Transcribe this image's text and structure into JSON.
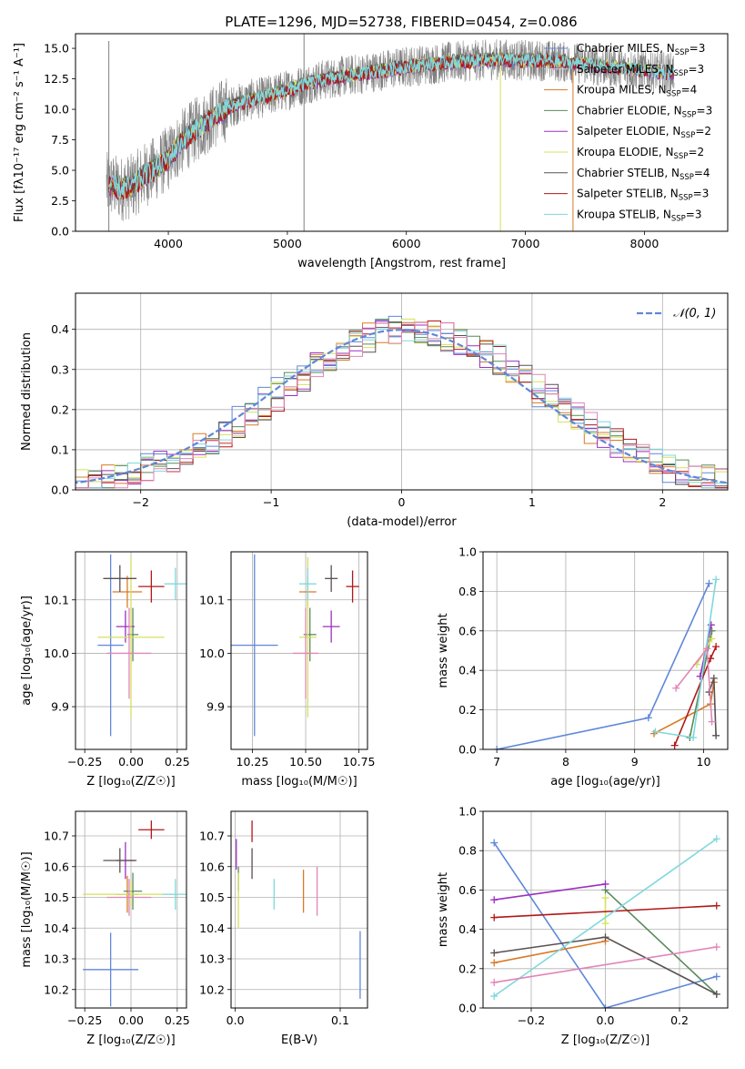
{
  "figure": {
    "title": "PLATE=1296, MJD=52738, FIBERID=0454, z=0.086"
  },
  "colors": {
    "Chabrier MILES": "#5f87d9",
    "Salpeter MILES": "#d0d0d0",
    "Kroupa MILES": "#d97a28",
    "Chabrier ELODIE": "#5a8a5a",
    "Salpeter ELODIE": "#9b30c0",
    "Kroupa ELODIE": "#d6e05a",
    "Chabrier STELIB": "#5a5050",
    "Salpeter STELIB": "#b01818",
    "Kroupa STELIB": "#7fd8dc",
    "pink": "#e085b8",
    "spectrum_gray": "#7f7f7f",
    "gauss": "#5f87d9"
  },
  "chart_data": [
    {
      "id": "spectrum",
      "type": "line",
      "title": "PLATE=1296, MJD=52738, FIBERID=0454, z=0.086",
      "xlabel": "wavelength [Angstrom, rest frame]",
      "ylabel": "Flux [fλ10⁻¹⁷ erg cm⁻² s⁻¹ A⁻¹]",
      "xlim": [
        3220,
        8700
      ],
      "ylim": [
        0,
        16.2
      ],
      "xticks": [
        4000,
        5000,
        6000,
        7000,
        8000
      ],
      "yticks": [
        0.0,
        2.5,
        5.0,
        7.5,
        10.0,
        12.5,
        15.0
      ],
      "grid": false,
      "legend_position": "top-right",
      "legend": [
        {
          "label": "Chabrier MILES, N",
          "sub": "SSP",
          "tail": "=3",
          "key": "Chabrier MILES"
        },
        {
          "label": "Salpeter MILES, N",
          "sub": "SSP",
          "tail": "=3",
          "key": "Salpeter MILES"
        },
        {
          "label": "Kroupa MILES, N",
          "sub": "SSP",
          "tail": "=4",
          "key": "Kroupa MILES"
        },
        {
          "label": "Chabrier ELODIE, N",
          "sub": "SSP",
          "tail": "=3",
          "key": "Chabrier ELODIE"
        },
        {
          "label": "Salpeter ELODIE, N",
          "sub": "SSP",
          "tail": "=2",
          "key": "Salpeter ELODIE"
        },
        {
          "label": "Kroupa ELODIE, N",
          "sub": "SSP",
          "tail": "=2",
          "key": "Kroupa ELODIE"
        },
        {
          "label": "Chabrier STELIB, N",
          "sub": "SSP",
          "tail": "=4",
          "key": "Chabrier STELIB"
        },
        {
          "label": "Salpeter STELIB, N",
          "sub": "SSP",
          "tail": "=3",
          "key": "Salpeter STELIB"
        },
        {
          "label": "Kroupa STELIB, N",
          "sub": "SSP",
          "tail": "=3",
          "key": "Kroupa STELIB"
        }
      ],
      "continuum": {
        "x": [
          3500,
          3600,
          3700,
          3800,
          3900,
          4000,
          4100,
          4200,
          4300,
          4400,
          4500,
          4600,
          4700,
          4800,
          4900,
          5000,
          5200,
          5400,
          5600,
          5800,
          6000,
          6200,
          6400,
          6600,
          6800,
          7000,
          7200,
          7400,
          7600,
          7800,
          8000,
          8200
        ],
        "y": [
          3.8,
          3.5,
          3.7,
          4.6,
          5.2,
          6.0,
          7.2,
          8.1,
          8.8,
          9.5,
          10.1,
          10.5,
          10.8,
          11.0,
          11.3,
          11.6,
          12.2,
          12.6,
          12.9,
          13.2,
          13.5,
          13.7,
          13.9,
          14.0,
          14.1,
          14.0,
          14.0,
          13.8,
          13.6,
          13.4,
          13.2,
          13.0
        ]
      },
      "spikes": [
        {
          "x": 3500,
          "ymin": 0,
          "ymax": 15.6
        },
        {
          "x": 5140,
          "ymin": 0,
          "ymax": 16.2
        },
        {
          "x": 6790,
          "ymin": 0,
          "ymax": 14.0
        },
        {
          "x": 7400,
          "ymin": 0,
          "ymax": 14.2
        }
      ]
    },
    {
      "id": "residuals",
      "type": "histogram",
      "xlabel": "(data-model)/error",
      "ylabel": "Normed distribution",
      "xlim": [
        -2.5,
        2.5
      ],
      "ylim": [
        0,
        0.49
      ],
      "xticks": [
        -2,
        -1,
        0,
        1,
        2
      ],
      "yticks": [
        0.0,
        0.1,
        0.2,
        0.3,
        0.4
      ],
      "grid": true,
      "legend": [
        {
          "label": "𝒩(0, 1)",
          "key": "gauss"
        }
      ],
      "legend_position": "top-right"
    },
    {
      "id": "age_vs_Z",
      "type": "errorbar",
      "xlabel": "Z [log₁₀(Z/Z☉)]",
      "ylabel": "age  [log₁₀(age/yr)]",
      "xlim": [
        -0.3,
        0.3
      ],
      "ylim": [
        9.82,
        10.19
      ],
      "xticks": [
        -0.25,
        0.0,
        0.25
      ],
      "xticklabels": [
        "−0.25",
        "0.00",
        "0.25"
      ],
      "yticks": [
        9.9,
        10.0,
        10.1
      ],
      "grid": true,
      "points": [
        {
          "key": "Chabrier MILES",
          "x": -0.11,
          "xerr": 0.07,
          "y": 10.015,
          "yerr": 0.17
        },
        {
          "key": "Kroupa MILES",
          "x": -0.02,
          "xerr": 0.08,
          "y": 10.115,
          "yerr": 0.03
        },
        {
          "key": "Chabrier ELODIE",
          "x": 0.01,
          "xerr": 0.03,
          "y": 10.035,
          "yerr": 0.05
        },
        {
          "key": "Salpeter ELODIE",
          "x": -0.03,
          "xerr": 0.05,
          "y": 10.05,
          "yerr": 0.03
        },
        {
          "key": "Kroupa ELODIE",
          "x": 0.0,
          "xerr": 0.18,
          "y": 10.03,
          "yerr": 0.15
        },
        {
          "key": "Chabrier STELIB",
          "x": -0.06,
          "xerr": 0.09,
          "y": 10.14,
          "yerr": 0.025
        },
        {
          "key": "Salpeter STELIB",
          "x": 0.11,
          "xerr": 0.07,
          "y": 10.125,
          "yerr": 0.03
        },
        {
          "key": "Kroupa STELIB",
          "x": 0.24,
          "xerr": 0.06,
          "y": 10.13,
          "yerr": 0.03
        },
        {
          "key": "pink",
          "x": -0.01,
          "xerr": 0.12,
          "y": 10.0,
          "yerr": 0.085
        }
      ]
    },
    {
      "id": "age_vs_mass",
      "type": "errorbar",
      "xlabel": "mass [log₁₀(M/M☉)]",
      "ylabel": "",
      "xlim": [
        10.15,
        10.79
      ],
      "ylim": [
        9.82,
        10.19
      ],
      "xticks": [
        10.25,
        10.5,
        10.75
      ],
      "xticklabels": [
        "10.25",
        "10.50",
        "10.75"
      ],
      "yticks": [
        9.9,
        10.0,
        10.1
      ],
      "grid": true,
      "points": [
        {
          "key": "Chabrier MILES",
          "x": 10.26,
          "xerr": 0.11,
          "y": 10.015,
          "yerr": 0.17
        },
        {
          "key": "Kroupa MILES",
          "x": 10.51,
          "xerr": 0.04,
          "y": 10.115,
          "yerr": 0.03
        },
        {
          "key": "Chabrier ELODIE",
          "x": 10.52,
          "xerr": 0.03,
          "y": 10.035,
          "yerr": 0.05
        },
        {
          "key": "Salpeter ELODIE",
          "x": 10.62,
          "xerr": 0.04,
          "y": 10.05,
          "yerr": 0.03
        },
        {
          "key": "Kroupa ELODIE",
          "x": 10.51,
          "xerr": 0.04,
          "y": 10.03,
          "yerr": 0.15
        },
        {
          "key": "Chabrier STELIB",
          "x": 10.62,
          "xerr": 0.03,
          "y": 10.14,
          "yerr": 0.025
        },
        {
          "key": "Salpeter STELIB",
          "x": 10.72,
          "xerr": 0.03,
          "y": 10.125,
          "yerr": 0.03
        },
        {
          "key": "Kroupa STELIB",
          "x": 10.51,
          "xerr": 0.04,
          "y": 10.13,
          "yerr": 0.03
        },
        {
          "key": "pink",
          "x": 10.5,
          "xerr": 0.06,
          "y": 10.0,
          "yerr": 0.085
        }
      ]
    },
    {
      "id": "mass_weight_vs_age",
      "type": "line",
      "xlabel": "age  [log₁₀(age/yr)]",
      "ylabel": "mass weight",
      "xlim": [
        6.8,
        10.35
      ],
      "ylim": [
        0,
        1.0
      ],
      "xticks": [
        7,
        8,
        9,
        10
      ],
      "yticks": [
        0.0,
        0.2,
        0.4,
        0.6,
        0.8,
        1.0
      ],
      "grid": true,
      "series": [
        {
          "key": "Chabrier MILES",
          "x": [
            7.0,
            9.2,
            10.08
          ],
          "y": [
            0.0,
            0.16,
            0.84
          ]
        },
        {
          "key": "Kroupa MILES",
          "x": [
            9.28,
            10.1,
            10.15
          ],
          "y": [
            0.08,
            0.23,
            0.34
          ]
        },
        {
          "key": "Chabrier ELODIE",
          "x": [
            9.8,
            10.12
          ],
          "y": [
            0.06,
            0.6
          ]
        },
        {
          "key": "Salpeter ELODIE",
          "x": [
            9.95,
            10.11
          ],
          "y": [
            0.37,
            0.63
          ]
        },
        {
          "key": "Kroupa ELODIE",
          "x": [
            9.9,
            10.12
          ],
          "y": [
            0.43,
            0.56
          ]
        },
        {
          "key": "Chabrier STELIB",
          "x": [
            10.08,
            10.15,
            10.18
          ],
          "y": [
            0.29,
            0.36,
            0.07
          ]
        },
        {
          "key": "Salpeter STELIB",
          "x": [
            9.58,
            10.1,
            10.18
          ],
          "y": [
            0.02,
            0.46,
            0.52
          ]
        },
        {
          "key": "Kroupa STELIB",
          "x": [
            9.3,
            9.85,
            10.18
          ],
          "y": [
            0.09,
            0.06,
            0.86
          ]
        },
        {
          "key": "pink",
          "x": [
            9.6,
            10.05,
            10.12
          ],
          "y": [
            0.31,
            0.51,
            0.14
          ]
        }
      ]
    },
    {
      "id": "mass_vs_Z",
      "type": "errorbar",
      "xlabel": "Z [log₁₀(Z/Z☉)]",
      "ylabel": "mass [log₁₀(M/M☉)]",
      "xlim": [
        -0.3,
        0.3
      ],
      "ylim": [
        10.14,
        10.78
      ],
      "xticks": [
        -0.25,
        0.0,
        0.25
      ],
      "xticklabels": [
        "−0.25",
        "0.00",
        "0.25"
      ],
      "yticks": [
        10.2,
        10.3,
        10.4,
        10.5,
        10.6,
        10.7
      ],
      "grid": true,
      "points": [
        {
          "key": "Chabrier MILES",
          "x": -0.11,
          "xerr": 0.15,
          "y": 10.265,
          "yerr": 0.12
        },
        {
          "key": "Kroupa MILES",
          "x": -0.02,
          "xerr": 0.06,
          "y": 10.51,
          "yerr": 0.06
        },
        {
          "key": "Chabrier ELODIE",
          "x": 0.01,
          "xerr": 0.05,
          "y": 10.52,
          "yerr": 0.06
        },
        {
          "key": "Salpeter ELODIE",
          "x": -0.03,
          "xerr": 0.05,
          "y": 10.62,
          "yerr": 0.06
        },
        {
          "key": "Kroupa ELODIE",
          "x": 0.0,
          "xerr": 0.26,
          "y": 10.51,
          "yerr": 0.04
        },
        {
          "key": "Chabrier STELIB",
          "x": -0.06,
          "xerr": 0.09,
          "y": 10.62,
          "yerr": 0.04
        },
        {
          "key": "Salpeter STELIB",
          "x": 0.11,
          "xerr": 0.07,
          "y": 10.72,
          "yerr": 0.03
        },
        {
          "key": "Kroupa STELIB",
          "x": 0.24,
          "xerr": 0.07,
          "y": 10.51,
          "yerr": 0.05
        },
        {
          "key": "pink",
          "x": -0.01,
          "xerr": 0.12,
          "y": 10.5,
          "yerr": 0.06
        }
      ]
    },
    {
      "id": "mass_vs_EBV",
      "type": "errorbar",
      "xlabel": "E(B-V)",
      "ylabel": "",
      "xlim": [
        -0.004,
        0.126
      ],
      "ylim": [
        10.14,
        10.78
      ],
      "xticks": [
        0.0,
        0.1
      ],
      "xticklabels": [
        "0.0",
        "0.1"
      ],
      "yticks": [
        10.2,
        10.3,
        10.4,
        10.5,
        10.6,
        10.7
      ],
      "grid": true,
      "points": [
        {
          "key": "Chabrier MILES",
          "x": 0.119,
          "xerr": 0,
          "y": 10.28,
          "yerr": 0.11
        },
        {
          "key": "Kroupa MILES",
          "x": 0.065,
          "xerr": 0,
          "y": 10.52,
          "yerr": 0.07
        },
        {
          "key": "Chabrier ELODIE",
          "x": 0.003,
          "xerr": 0,
          "y": 10.56,
          "yerr": 0.04
        },
        {
          "key": "Salpeter ELODIE",
          "x": 0.001,
          "xerr": 0,
          "y": 10.64,
          "yerr": 0.05
        },
        {
          "key": "Kroupa ELODIE",
          "x": 0.003,
          "xerr": 0,
          "y": 10.49,
          "yerr": 0.09
        },
        {
          "key": "Chabrier STELIB",
          "x": 0.016,
          "xerr": 0,
          "y": 10.61,
          "yerr": 0.05
        },
        {
          "key": "Salpeter STELIB",
          "x": 0.016,
          "xerr": 0,
          "y": 10.715,
          "yerr": 0.035
        },
        {
          "key": "Kroupa STELIB",
          "x": 0.037,
          "xerr": 0,
          "y": 10.51,
          "yerr": 0.05
        },
        {
          "key": "pink",
          "x": 0.078,
          "xerr": 0,
          "y": 10.52,
          "yerr": 0.08
        }
      ]
    },
    {
      "id": "mass_weight_vs_Z",
      "type": "line",
      "xlabel": "Z [log₁₀(Z/Z☉)]",
      "ylabel": "mass weight",
      "xlim": [
        -0.33,
        0.33
      ],
      "ylim": [
        0,
        1.0
      ],
      "xticks": [
        -0.2,
        0.0,
        0.2
      ],
      "xticklabels": [
        "−0.2",
        "0.0",
        "0.2"
      ],
      "yticks": [
        0.0,
        0.2,
        0.4,
        0.6,
        0.8,
        1.0
      ],
      "grid": true,
      "series": [
        {
          "key": "Chabrier MILES",
          "x": [
            -0.3,
            0.0,
            0.3
          ],
          "y": [
            0.84,
            0.0,
            0.16
          ]
        },
        {
          "key": "Kroupa MILES",
          "x": [
            -0.3,
            0.0
          ],
          "y": [
            0.23,
            0.34
          ]
        },
        {
          "key": "Chabrier ELODIE",
          "x": [
            0.0,
            0.3
          ],
          "y": [
            0.6,
            0.07
          ]
        },
        {
          "key": "Salpeter ELODIE",
          "x": [
            -0.3,
            0.0
          ],
          "y": [
            0.55,
            0.63
          ]
        },
        {
          "key": "Kroupa ELODIE",
          "x": [
            0.0,
            0.0
          ],
          "y": [
            0.43,
            0.56
          ]
        },
        {
          "key": "Chabrier STELIB",
          "x": [
            -0.3,
            0.0,
            0.3
          ],
          "y": [
            0.28,
            0.36,
            0.07
          ]
        },
        {
          "key": "Salpeter STELIB",
          "x": [
            -0.3,
            0.3
          ],
          "y": [
            0.46,
            0.52
          ]
        },
        {
          "key": "Kroupa STELIB",
          "x": [
            -0.3,
            0.3
          ],
          "y": [
            0.06,
            0.86
          ]
        },
        {
          "key": "pink",
          "x": [
            -0.3,
            0.3
          ],
          "y": [
            0.13,
            0.31
          ]
        }
      ]
    }
  ]
}
